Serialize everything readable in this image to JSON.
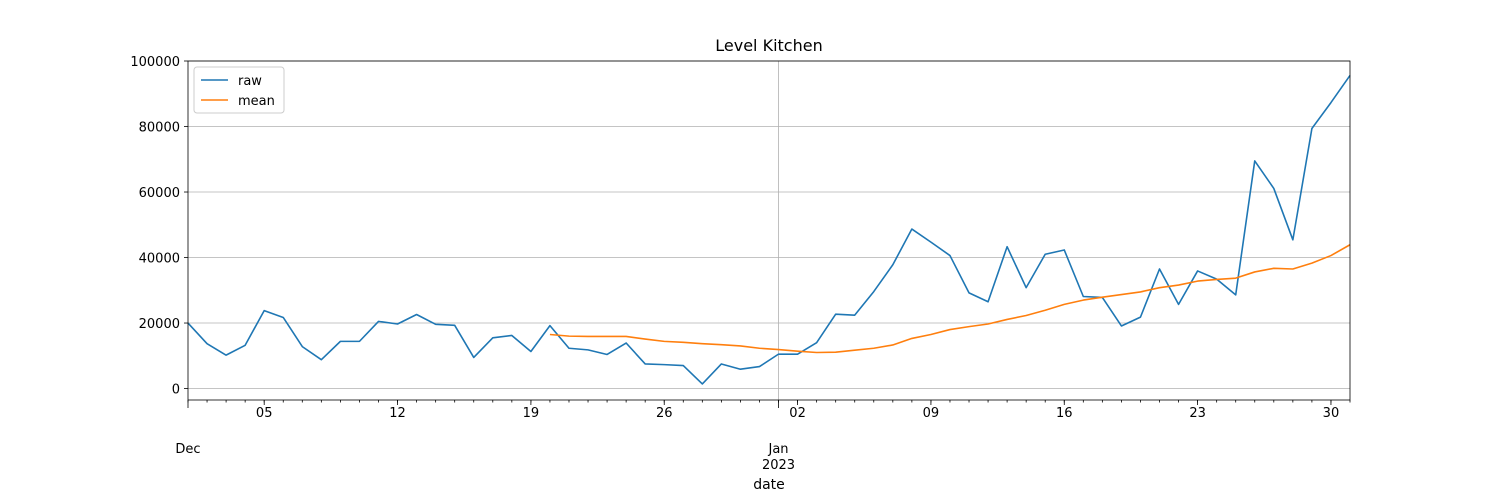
{
  "chart_data": {
    "type": "line",
    "title": "Level Kitchen",
    "xlabel": "date",
    "ylabel": "",
    "x_range": [
      "2022-12-01",
      "2023-01-31"
    ],
    "ylim": [
      -3500,
      100000
    ],
    "grid": true,
    "legend_position": "top-left",
    "y_ticks": [
      {
        "value": 0,
        "label": "0"
      },
      {
        "value": 20000,
        "label": "20000"
      },
      {
        "value": 40000,
        "label": "40000"
      },
      {
        "value": 60000,
        "label": "60000"
      },
      {
        "value": 80000,
        "label": "80000"
      },
      {
        "value": 100000,
        "label": "100000"
      }
    ],
    "x_ticks": [
      {
        "date": "2022-12-05",
        "label": "05"
      },
      {
        "date": "2022-12-12",
        "label": "12"
      },
      {
        "date": "2022-12-19",
        "label": "19"
      },
      {
        "date": "2022-12-26",
        "label": "26"
      },
      {
        "date": "2023-01-02",
        "label": "02"
      },
      {
        "date": "2023-01-09",
        "label": "09"
      },
      {
        "date": "2023-01-16",
        "label": "16"
      },
      {
        "date": "2023-01-23",
        "label": "23"
      },
      {
        "date": "2023-01-30",
        "label": "30"
      }
    ],
    "month_labels": [
      {
        "date": "2022-12-01",
        "label": "Dec",
        "year": ""
      },
      {
        "date": "2023-01-01",
        "label": "Jan",
        "year": "2023"
      }
    ],
    "series": [
      {
        "name": "raw",
        "color": "#1f77b4",
        "start_date": "2022-12-01",
        "values": [
          20000,
          13700,
          10200,
          13200,
          23800,
          21700,
          12800,
          8800,
          14400,
          14400,
          20500,
          19700,
          22600,
          19600,
          19300,
          9500,
          15500,
          16200,
          11300,
          19200,
          12300,
          11800,
          10400,
          13900,
          7500,
          7300,
          7000,
          1400,
          7500,
          5900,
          6700,
          10500,
          10500,
          14000,
          22700,
          22400,
          29600,
          37800,
          48700,
          44700,
          40600,
          29200,
          26500,
          43300,
          30800,
          41000,
          42300,
          28100,
          27800,
          19100,
          21800,
          36500,
          25700,
          35900,
          33400,
          28600,
          69500,
          61100,
          45400,
          79400,
          87300,
          95600
        ]
      },
      {
        "name": "mean",
        "color": "#ff7f0e",
        "start_date": "2022-12-20",
        "values": [
          16500,
          16000,
          15900,
          15900,
          15900,
          15100,
          14400,
          14100,
          13700,
          13400,
          13000,
          12300,
          11900,
          11400,
          11000,
          11100,
          11700,
          12300,
          13300,
          15300,
          16500,
          18000,
          18900,
          19700,
          21100,
          22300,
          23900,
          25700,
          27000,
          27900,
          28700,
          29500,
          30800,
          31600,
          32800,
          33300,
          33700,
          35600,
          36700,
          36500,
          38300,
          40600,
          43900
        ]
      }
    ]
  }
}
